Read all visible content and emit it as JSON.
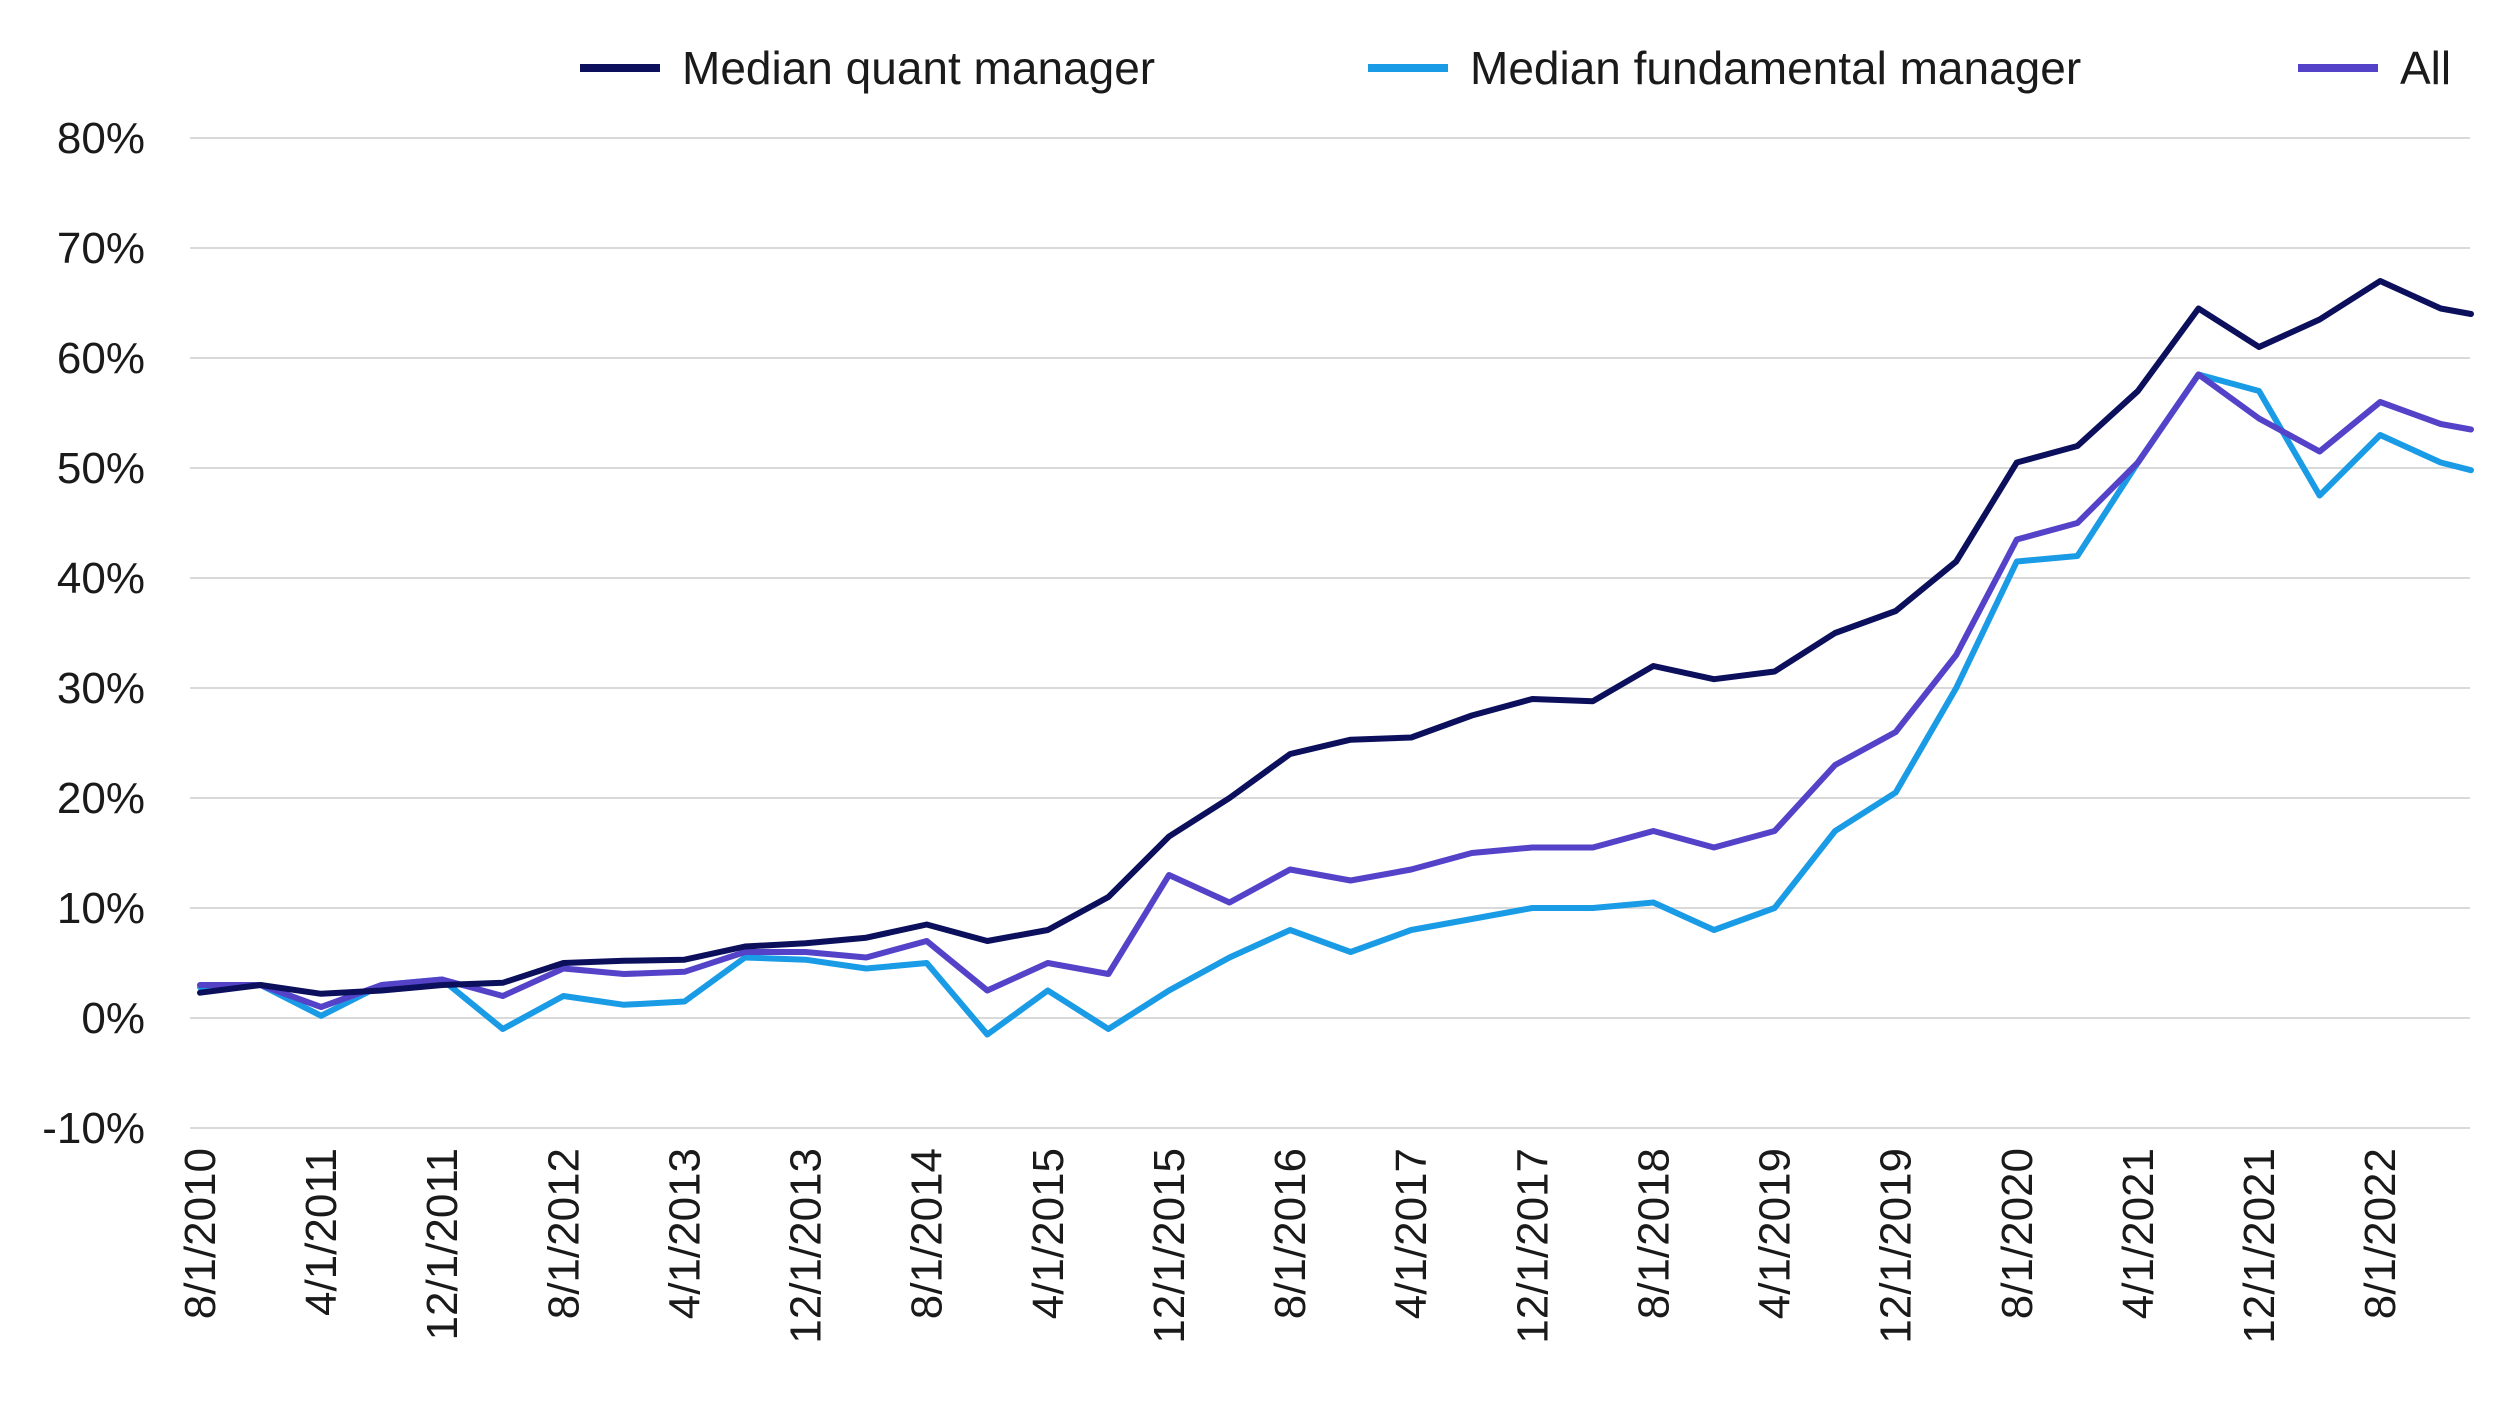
{
  "chart_data": {
    "type": "line",
    "title": "",
    "xlabel": "",
    "ylabel": "",
    "ylim": [
      -10,
      80
    ],
    "y_ticks": [
      -10,
      0,
      10,
      20,
      30,
      40,
      50,
      60,
      70,
      80
    ],
    "y_tick_labels": [
      "-10%",
      "0%",
      "10%",
      "20%",
      "30%",
      "40%",
      "50%",
      "60%",
      "70%",
      "80%"
    ],
    "x_start": "8/1/2010",
    "x_end": "2/1/2023",
    "x_tick_labels": [
      "8/1/2010",
      "4/1/2011",
      "12/1/2011",
      "8/1/2012",
      "4/1/2013",
      "12/1/2013",
      "8/1/2014",
      "4/1/2015",
      "12/1/2015",
      "8/1/2016",
      "4/1/2017",
      "12/1/2017",
      "8/1/2018",
      "4/1/2019",
      "12/1/2019",
      "8/1/2020",
      "4/1/2021",
      "12/1/2021",
      "8/1/2022"
    ],
    "grid": "horizontal",
    "legend_position": "top",
    "series": [
      {
        "name": "Median quant manager",
        "color": "#0b0f5c",
        "points": [
          [
            "8/1/2010",
            2.3
          ],
          [
            "12/1/2010",
            3.0
          ],
          [
            "4/1/2011",
            2.2
          ],
          [
            "8/1/2011",
            2.5
          ],
          [
            "12/1/2011",
            3.0
          ],
          [
            "4/1/2012",
            3.2
          ],
          [
            "8/1/2012",
            5.0
          ],
          [
            "12/1/2012",
            5.2
          ],
          [
            "4/1/2013",
            5.3
          ],
          [
            "8/1/2013",
            6.5
          ],
          [
            "12/1/2013",
            6.8
          ],
          [
            "4/1/2014",
            7.3
          ],
          [
            "8/1/2014",
            8.5
          ],
          [
            "12/1/2014",
            7.0
          ],
          [
            "4/1/2015",
            8.0
          ],
          [
            "8/1/2015",
            11.0
          ],
          [
            "12/1/2015",
            16.5
          ],
          [
            "4/1/2016",
            20.0
          ],
          [
            "8/1/2016",
            24.0
          ],
          [
            "12/1/2016",
            25.3
          ],
          [
            "4/1/2017",
            25.5
          ],
          [
            "8/1/2017",
            27.5
          ],
          [
            "12/1/2017",
            29.0
          ],
          [
            "4/1/2018",
            28.8
          ],
          [
            "8/1/2018",
            32.0
          ],
          [
            "12/1/2018",
            30.8
          ],
          [
            "4/1/2019",
            31.5
          ],
          [
            "8/1/2019",
            35.0
          ],
          [
            "12/1/2019",
            37.0
          ],
          [
            "4/1/2020",
            41.5
          ],
          [
            "8/1/2020",
            50.5
          ],
          [
            "12/1/2020",
            52.0
          ],
          [
            "4/1/2021",
            57.0
          ],
          [
            "8/1/2021",
            64.5
          ],
          [
            "12/1/2021",
            61.0
          ],
          [
            "4/1/2022",
            63.5
          ],
          [
            "8/1/2022",
            67.0
          ],
          [
            "12/1/2022",
            64.5
          ],
          [
            "2/1/2023",
            64.0
          ]
        ]
      },
      {
        "name": "Median fundamental manager",
        "color": "#1a9be6",
        "points": [
          [
            "8/1/2010",
            2.8
          ],
          [
            "12/1/2010",
            3.0
          ],
          [
            "4/1/2011",
            0.2
          ],
          [
            "8/1/2011",
            3.0
          ],
          [
            "12/1/2011",
            3.5
          ],
          [
            "4/1/2012",
            -1.0
          ],
          [
            "8/1/2012",
            2.0
          ],
          [
            "12/1/2012",
            1.2
          ],
          [
            "4/1/2013",
            1.5
          ],
          [
            "8/1/2013",
            5.5
          ],
          [
            "12/1/2013",
            5.3
          ],
          [
            "4/1/2014",
            4.5
          ],
          [
            "8/1/2014",
            5.0
          ],
          [
            "12/1/2014",
            -1.5
          ],
          [
            "4/1/2015",
            2.5
          ],
          [
            "8/1/2015",
            -1.0
          ],
          [
            "12/1/2015",
            2.5
          ],
          [
            "4/1/2016",
            5.5
          ],
          [
            "8/1/2016",
            8.0
          ],
          [
            "12/1/2016",
            6.0
          ],
          [
            "4/1/2017",
            8.0
          ],
          [
            "8/1/2017",
            9.0
          ],
          [
            "12/1/2017",
            10.0
          ],
          [
            "4/1/2018",
            10.0
          ],
          [
            "8/1/2018",
            10.5
          ],
          [
            "12/1/2018",
            8.0
          ],
          [
            "4/1/2019",
            10.0
          ],
          [
            "8/1/2019",
            17.0
          ],
          [
            "12/1/2019",
            20.5
          ],
          [
            "4/1/2020",
            30.0
          ],
          [
            "8/1/2020",
            41.5
          ],
          [
            "12/1/2020",
            42.0
          ],
          [
            "4/1/2021",
            50.5
          ],
          [
            "8/1/2021",
            58.5
          ],
          [
            "12/1/2021",
            57.0
          ],
          [
            "4/1/2022",
            47.5
          ],
          [
            "8/1/2022",
            53.0
          ],
          [
            "12/1/2022",
            50.5
          ],
          [
            "2/1/2023",
            49.8
          ]
        ]
      },
      {
        "name": "All",
        "color": "#5443c8",
        "points": [
          [
            "8/1/2010",
            3.0
          ],
          [
            "12/1/2010",
            3.0
          ],
          [
            "4/1/2011",
            1.0
          ],
          [
            "8/1/2011",
            3.0
          ],
          [
            "12/1/2011",
            3.5
          ],
          [
            "4/1/2012",
            2.0
          ],
          [
            "8/1/2012",
            4.5
          ],
          [
            "12/1/2012",
            4.0
          ],
          [
            "4/1/2013",
            4.2
          ],
          [
            "8/1/2013",
            6.0
          ],
          [
            "12/1/2013",
            6.0
          ],
          [
            "4/1/2014",
            5.5
          ],
          [
            "8/1/2014",
            7.0
          ],
          [
            "12/1/2014",
            2.5
          ],
          [
            "4/1/2015",
            5.0
          ],
          [
            "8/1/2015",
            4.0
          ],
          [
            "12/1/2015",
            13.0
          ],
          [
            "4/1/2016",
            10.5
          ],
          [
            "8/1/2016",
            13.5
          ],
          [
            "12/1/2016",
            12.5
          ],
          [
            "4/1/2017",
            13.5
          ],
          [
            "8/1/2017",
            15.0
          ],
          [
            "12/1/2017",
            15.5
          ],
          [
            "4/1/2018",
            15.5
          ],
          [
            "8/1/2018",
            17.0
          ],
          [
            "12/1/2018",
            15.5
          ],
          [
            "4/1/2019",
            17.0
          ],
          [
            "8/1/2019",
            23.0
          ],
          [
            "12/1/2019",
            26.0
          ],
          [
            "4/1/2020",
            33.0
          ],
          [
            "8/1/2020",
            43.5
          ],
          [
            "12/1/2020",
            45.0
          ],
          [
            "4/1/2021",
            50.5
          ],
          [
            "8/1/2021",
            58.5
          ],
          [
            "12/1/2021",
            54.5
          ],
          [
            "4/1/2022",
            51.5
          ],
          [
            "8/1/2022",
            56.0
          ],
          [
            "12/1/2022",
            54.0
          ],
          [
            "2/1/2023",
            53.5
          ]
        ]
      }
    ]
  }
}
